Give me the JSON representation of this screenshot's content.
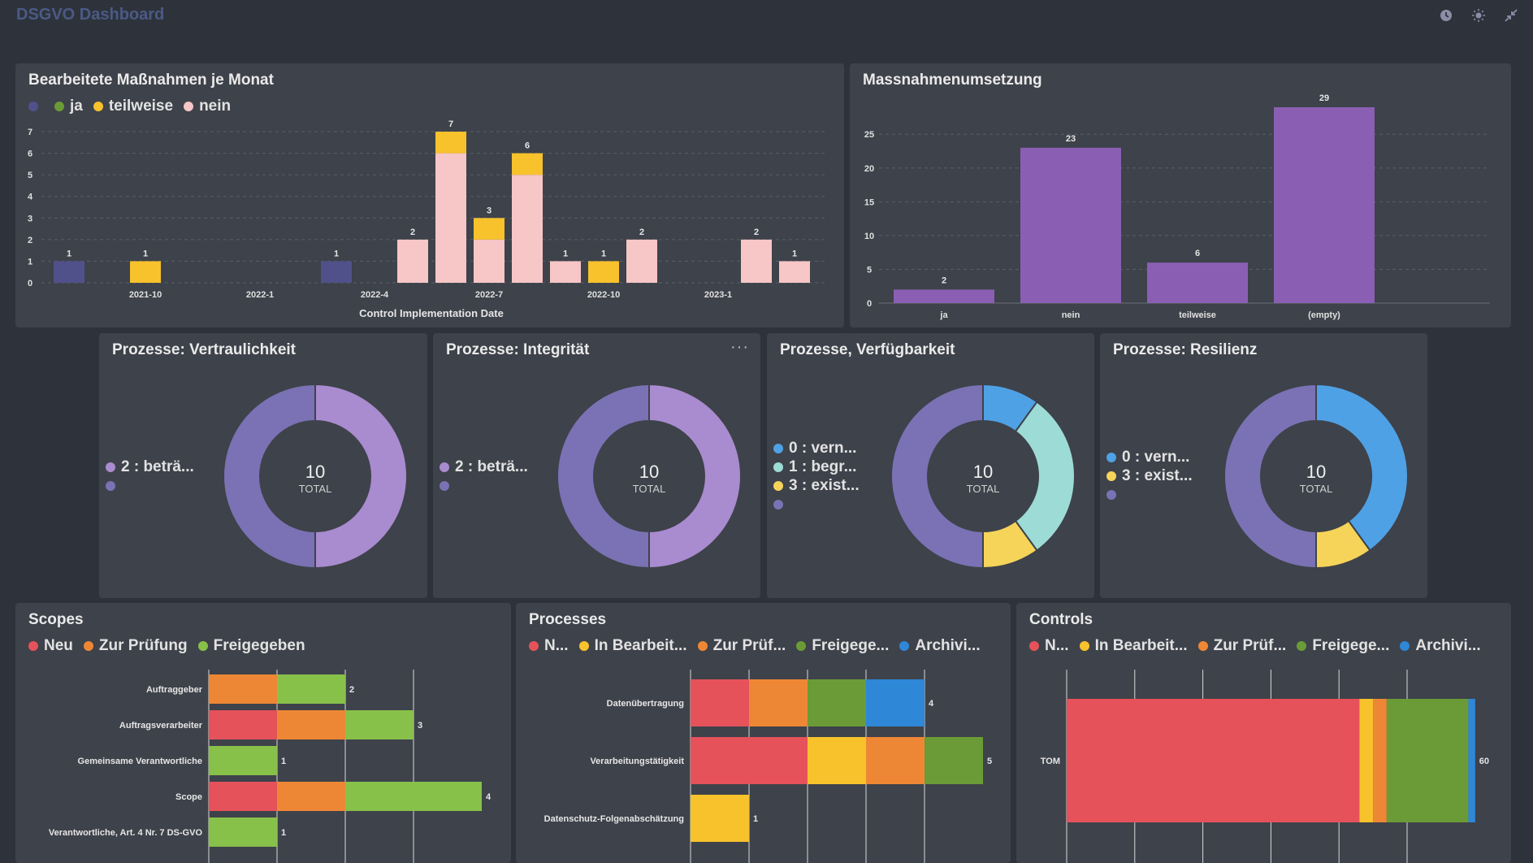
{
  "app": {
    "title": "DSGVO Dashboard"
  },
  "colors": {
    "bg": "#2e333b",
    "card": "#3e424a",
    "purple": "#8a5fb3",
    "navy": "#50518a",
    "yellow": "#f7c22c",
    "pink": "#f7c6c6",
    "green": "#6b9b37",
    "red": "#e5525a",
    "orange": "#ee8735",
    "lime": "#88c14a",
    "blue": "#2f87d8",
    "light_blue": "#4fa1e5",
    "teal": "#9ddbd6",
    "donut_lilac": "#a98bcf",
    "donut_violet": "#7a72b4",
    "donut_yellow": "#f6d45a"
  },
  "cards": {
    "monthly": {
      "title": "Bearbeitete Maßnahmen je Monat",
      "legend": [
        {
          "label": "",
          "color": "#50518a"
        },
        {
          "label": "ja",
          "color": "#6b9b37"
        },
        {
          "label": "teilweise",
          "color": "#f7c22c"
        },
        {
          "label": "nein",
          "color": "#f7c6c6"
        }
      ]
    },
    "massnahmen": {
      "title": "Massnahmenumsetzung"
    },
    "vertraulichkeit": {
      "title": "Prozesse: Vertraulichkeit",
      "legend": [
        {
          "label": "2 : beträ...",
          "color": "#a98bcf"
        },
        {
          "label": "",
          "color": "#7a72b4"
        }
      ],
      "total": "10",
      "total_label": "TOTAL"
    },
    "integritaet": {
      "title": "Prozesse: Integrität",
      "more": "···",
      "legend": [
        {
          "label": "2 : beträ...",
          "color": "#a98bcf"
        },
        {
          "label": "",
          "color": "#7a72b4"
        }
      ],
      "total": "10",
      "total_label": "TOTAL"
    },
    "verfuegbarkeit": {
      "title": "Prozesse, Verfügbarkeit",
      "legend": [
        {
          "label": "0 : vern...",
          "color": "#4fa1e5"
        },
        {
          "label": "1 : begr...",
          "color": "#9ddbd6"
        },
        {
          "label": "3 : exist...",
          "color": "#f6d45a"
        },
        {
          "label": "",
          "color": "#7a72b4"
        }
      ],
      "total": "10",
      "total_label": "TOTAL"
    },
    "resilienz": {
      "title": "Prozesse: Resilienz",
      "legend": [
        {
          "label": "0 : vern...",
          "color": "#4fa1e5"
        },
        {
          "label": "3 : exist...",
          "color": "#f6d45a"
        },
        {
          "label": "",
          "color": "#7a72b4"
        }
      ],
      "total": "10",
      "total_label": "TOTAL"
    },
    "scopes": {
      "title": "Scopes",
      "legend": [
        {
          "label": "Neu",
          "color": "#e5525a"
        },
        {
          "label": "Zur Prüfung",
          "color": "#ee8735"
        },
        {
          "label": "Freigegeben",
          "color": "#88c14a"
        }
      ]
    },
    "processes": {
      "title": "Processes",
      "legend": [
        {
          "label": "N...",
          "color": "#e5525a"
        },
        {
          "label": "In Bearbeit...",
          "color": "#f7c22c"
        },
        {
          "label": "Zur Prüf...",
          "color": "#ee8735"
        },
        {
          "label": "Freigege...",
          "color": "#6b9b37"
        },
        {
          "label": "Archivi...",
          "color": "#2f87d8"
        }
      ]
    },
    "controls": {
      "title": "Controls",
      "legend": [
        {
          "label": "N...",
          "color": "#e5525a"
        },
        {
          "label": "In Bearbeit...",
          "color": "#f7c22c"
        },
        {
          "label": "Zur Prüf...",
          "color": "#ee8735"
        },
        {
          "label": "Freigege...",
          "color": "#6b9b37"
        },
        {
          "label": "Archivi...",
          "color": "#2f87d8"
        }
      ]
    }
  },
  "chart_data": [
    {
      "id": "monthly",
      "type": "bar",
      "stacked": true,
      "title": "Bearbeitete Maßnahmen je Monat",
      "xlabel": "Control Implementation Date",
      "ylim": [
        0,
        7
      ],
      "yticks": [
        0,
        1,
        2,
        3,
        4,
        5,
        6,
        7
      ],
      "xtick_labels": [
        "2021-10",
        "2022-1",
        "2022-4",
        "2022-7",
        "2022-10",
        "2023-1"
      ],
      "bars": [
        {
          "x": "2021-8",
          "segments": [
            {
              "series": "",
              "value": 1
            }
          ],
          "total": 1
        },
        {
          "x": "2021-10",
          "segments": [
            {
              "series": "teilweise",
              "value": 1
            }
          ],
          "total": 1
        },
        {
          "x": "2022-3",
          "segments": [
            {
              "series": "",
              "value": 1
            }
          ],
          "total": 1
        },
        {
          "x": "2022-5",
          "segments": [
            {
              "series": "nein",
              "value": 2
            }
          ],
          "total": 2
        },
        {
          "x": "2022-6",
          "segments": [
            {
              "series": "nein",
              "value": 6
            },
            {
              "series": "teilweise",
              "value": 1
            }
          ],
          "total": 7
        },
        {
          "x": "2022-7",
          "segments": [
            {
              "series": "nein",
              "value": 2
            },
            {
              "series": "teilweise",
              "value": 1
            }
          ],
          "total": 3
        },
        {
          "x": "2022-8",
          "segments": [
            {
              "series": "nein",
              "value": 5
            },
            {
              "series": "teilweise",
              "value": 1
            }
          ],
          "total": 6
        },
        {
          "x": "2022-9",
          "segments": [
            {
              "series": "nein",
              "value": 1
            }
          ],
          "total": 1
        },
        {
          "x": "2022-10",
          "segments": [
            {
              "series": "teilweise",
              "value": 1
            }
          ],
          "total": 1
        },
        {
          "x": "2022-11",
          "segments": [
            {
              "series": "nein",
              "value": 2
            }
          ],
          "total": 2
        },
        {
          "x": "2023-2",
          "segments": [
            {
              "series": "nein",
              "value": 2
            }
          ],
          "total": 2
        },
        {
          "x": "2023-3",
          "segments": [
            {
              "series": "nein",
              "value": 1
            }
          ],
          "total": 1
        }
      ]
    },
    {
      "id": "massnahmen",
      "type": "bar",
      "title": "Massnahmenumsetzung",
      "categories": [
        "ja",
        "nein",
        "teilweise",
        "(empty)"
      ],
      "values": [
        2,
        23,
        6,
        29
      ],
      "ylim": [
        0,
        29
      ],
      "yticks": [
        0,
        5,
        10,
        15,
        20,
        25
      ]
    },
    {
      "id": "vertraulichkeit",
      "type": "pie",
      "donut": true,
      "title": "Prozesse: Vertraulichkeit",
      "slices": [
        {
          "label": "2 : beträ...",
          "value": 5
        },
        {
          "label": "",
          "value": 5
        }
      ],
      "total": 10
    },
    {
      "id": "integritaet",
      "type": "pie",
      "donut": true,
      "title": "Prozesse: Integrität",
      "slices": [
        {
          "label": "2 : beträ...",
          "value": 5
        },
        {
          "label": "",
          "value": 5
        }
      ],
      "total": 10
    },
    {
      "id": "verfuegbarkeit",
      "type": "pie",
      "donut": true,
      "title": "Prozesse, Verfügbarkeit",
      "slices": [
        {
          "label": "0 : vern...",
          "value": 1
        },
        {
          "label": "1 : begr...",
          "value": 3
        },
        {
          "label": "3 : exist...",
          "value": 1
        },
        {
          "label": "",
          "value": 5
        }
      ],
      "total": 10
    },
    {
      "id": "resilienz",
      "type": "pie",
      "donut": true,
      "title": "Prozesse: Resilienz",
      "slices": [
        {
          "label": "0 : vern...",
          "value": 4
        },
        {
          "label": "3 : exist...",
          "value": 1
        },
        {
          "label": "",
          "value": 5
        }
      ],
      "total": 10
    },
    {
      "id": "scopes",
      "type": "bar",
      "orientation": "horizontal",
      "stacked": true,
      "title": "Scopes",
      "xmax": 4,
      "rows": [
        {
          "label": "Auftraggeber",
          "segments": [
            {
              "series": "Zur Prüfung",
              "value": 1
            },
            {
              "series": "Freigegeben",
              "value": 1
            }
          ],
          "total": 2
        },
        {
          "label": "Auftragsverarbeiter",
          "segments": [
            {
              "series": "Neu",
              "value": 1
            },
            {
              "series": "Zur Prüfung",
              "value": 1
            },
            {
              "series": "Freigegeben",
              "value": 1
            }
          ],
          "total": 3
        },
        {
          "label": "Gemeinsame Verantwortliche",
          "segments": [
            {
              "series": "Freigegeben",
              "value": 1
            }
          ],
          "total": 1
        },
        {
          "label": "Scope",
          "segments": [
            {
              "series": "Neu",
              "value": 1
            },
            {
              "series": "Zur Prüfung",
              "value": 1
            },
            {
              "series": "Freigegeben",
              "value": 2
            }
          ],
          "total": 4
        },
        {
          "label": "Verantwortliche, Art. 4 Nr. 7 DS-GVO",
          "segments": [
            {
              "series": "Freigegeben",
              "value": 1
            }
          ],
          "total": 1
        }
      ]
    },
    {
      "id": "processes",
      "type": "bar",
      "orientation": "horizontal",
      "stacked": true,
      "title": "Processes",
      "xmax": 5,
      "rows": [
        {
          "label": "Datenübertragung",
          "segments": [
            {
              "series": "Neu",
              "value": 1
            },
            {
              "series": "Zur Prüfung",
              "value": 1
            },
            {
              "series": "Freigegeben",
              "value": 1
            },
            {
              "series": "Archiviert",
              "value": 1
            }
          ],
          "total": 4
        },
        {
          "label": "Verarbeitungstätigkeit",
          "segments": [
            {
              "series": "Neu",
              "value": 2
            },
            {
              "series": "In Bearbeitung",
              "value": 1
            },
            {
              "series": "Zur Prüfung",
              "value": 1
            },
            {
              "series": "Freigegeben",
              "value": 1
            }
          ],
          "total": 5
        },
        {
          "label": "Datenschutz-Folgenabschätzung",
          "segments": [
            {
              "series": "In Bearbeitung",
              "value": 1
            }
          ],
          "total": 1
        }
      ]
    },
    {
      "id": "controls",
      "type": "bar",
      "orientation": "horizontal",
      "stacked": true,
      "title": "Controls",
      "xmax": 60,
      "rows": [
        {
          "label": "TOM",
          "segments": [
            {
              "series": "Neu",
              "value": 43
            },
            {
              "series": "In Bearbeitung",
              "value": 2
            },
            {
              "series": "Zur Prüfung",
              "value": 2
            },
            {
              "series": "Freigegeben",
              "value": 12
            },
            {
              "series": "Archiviert",
              "value": 1
            }
          ],
          "total": 60
        }
      ]
    }
  ]
}
